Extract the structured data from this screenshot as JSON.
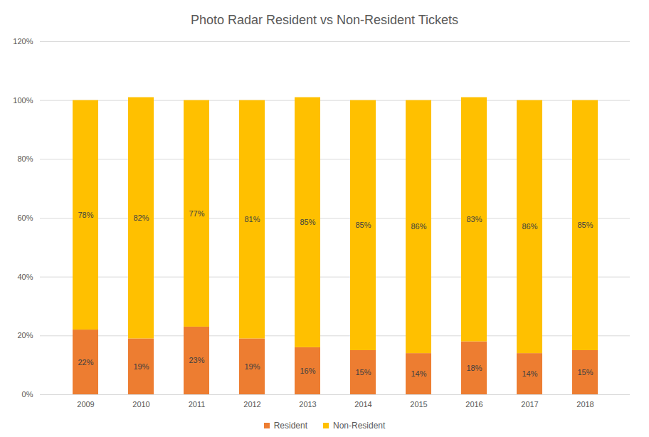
{
  "chart_data": {
    "type": "bar",
    "title": "Photo Radar Resident vs Non-Resident Tickets",
    "categories": [
      "2009",
      "2010",
      "2011",
      "2012",
      "2013",
      "2014",
      "2015",
      "2016",
      "2017",
      "2018"
    ],
    "series": [
      {
        "name": "Resident",
        "color": "#ED7D31",
        "values": [
          22,
          19,
          23,
          19,
          16,
          15,
          14,
          18,
          14,
          15
        ],
        "value_labels": [
          "22%",
          "19%",
          "23%",
          "19%",
          "16%",
          "15%",
          "14%",
          "18%",
          "14%",
          "15%"
        ]
      },
      {
        "name": "Non-Resident",
        "color": "#FFC000",
        "values": [
          78,
          82,
          77,
          81,
          85,
          85,
          86,
          83,
          86,
          85
        ],
        "value_labels": [
          "78%",
          "82%",
          "77%",
          "81%",
          "85%",
          "85%",
          "86%",
          "83%",
          "86%",
          "85%"
        ]
      }
    ],
    "stacked": true,
    "data_labels": true,
    "ylim": [
      0,
      120
    ],
    "yticks": [
      {
        "value": 0,
        "label": "0%"
      },
      {
        "value": 20,
        "label": "20%"
      },
      {
        "value": 40,
        "label": "40%"
      },
      {
        "value": 60,
        "label": "60%"
      },
      {
        "value": 80,
        "label": "80%"
      },
      {
        "value": 100,
        "label": "100%"
      },
      {
        "value": 120,
        "label": "120%"
      }
    ],
    "grid": true,
    "legend": "bottom"
  }
}
